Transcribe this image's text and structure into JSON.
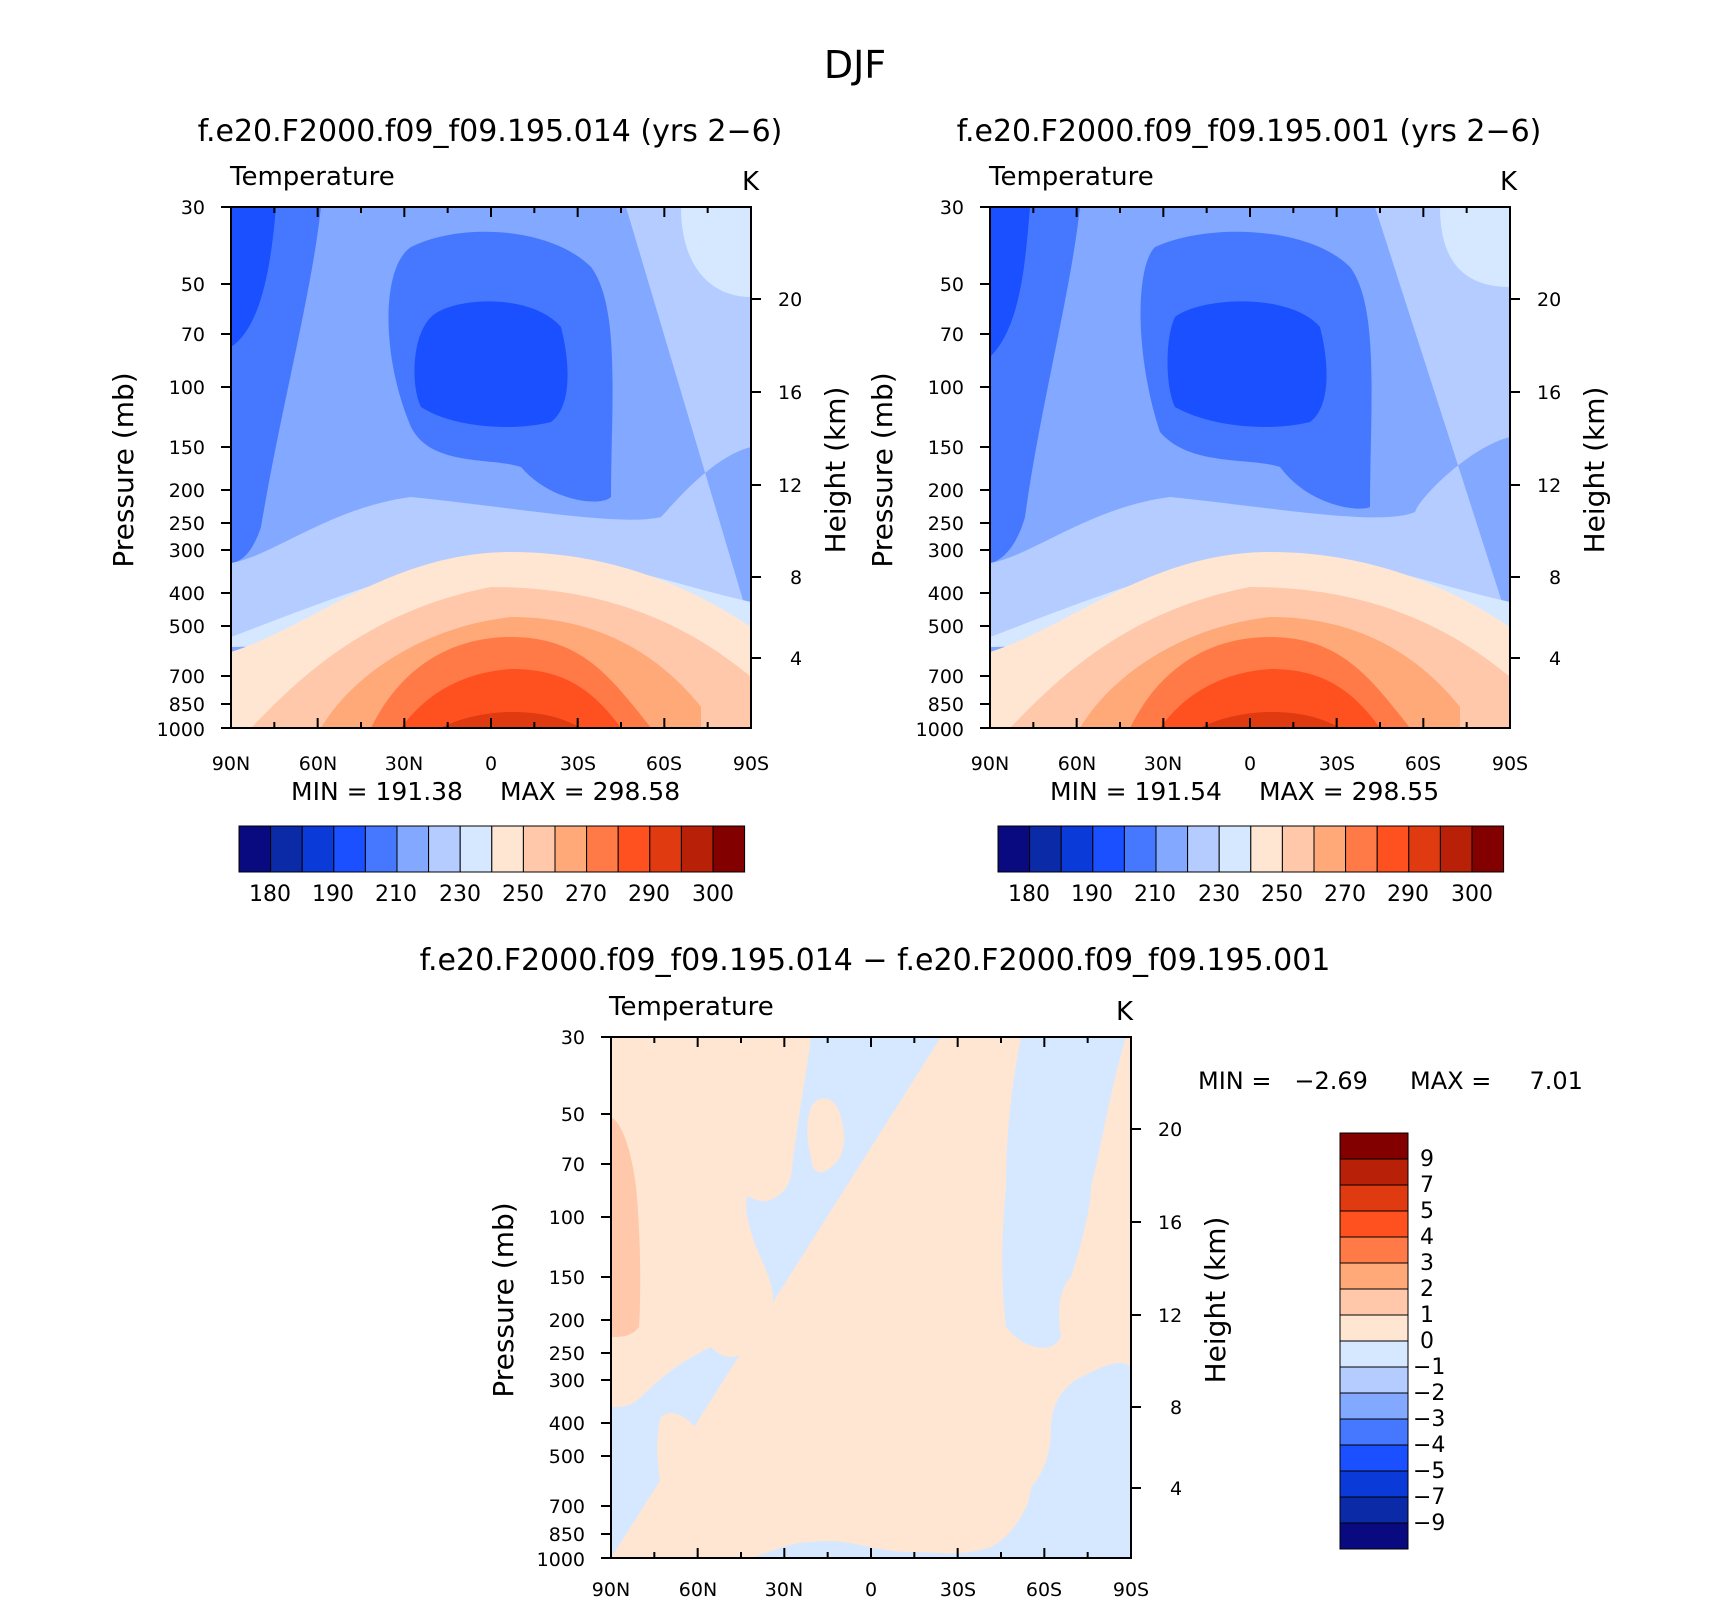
{
  "figure_title": "DJF",
  "chart_data": [
    {
      "type": "heatmap",
      "title": "f.e20.F2000.f09_f09.195.014 (yrs 2−6)",
      "subtitle": "Temperature",
      "units": "K",
      "ylabel": "Pressure (mb)",
      "y2label": "Height (km)",
      "x_ticks": [
        "90N",
        "60N",
        "30N",
        "0",
        "30S",
        "60S",
        "90S"
      ],
      "y_ticks": [
        "30",
        "50",
        "70",
        "100",
        "150",
        "200",
        "250",
        "300",
        "400",
        "500",
        "700",
        "850",
        "1000"
      ],
      "y2_ticks": [
        "20",
        "16",
        "12",
        "8",
        "4"
      ],
      "min_label": "MIN = 191.38",
      "max_label": "MAX = 298.58",
      "min": 191.38,
      "max": 298.58,
      "colorbar_labels": [
        "180",
        "190",
        "210",
        "230",
        "250",
        "270",
        "290",
        "300"
      ],
      "colors": [
        "#0a0a80",
        "#0a2aa8",
        "#0a3ad8",
        "#1a50ff",
        "#4678ff",
        "#82a8ff",
        "#b4ccff",
        "#d6e8ff",
        "#ffe6d2",
        "#ffc8aa",
        "#ffa878",
        "#ff7a46",
        "#ff5020",
        "#e03a10",
        "#b82008",
        "#820000"
      ]
    },
    {
      "type": "heatmap",
      "title": "f.e20.F2000.f09_f09.195.001 (yrs 2−6)",
      "subtitle": "Temperature",
      "units": "K",
      "ylabel": "Pressure (mb)",
      "y2label": "Height (km)",
      "x_ticks": [
        "90N",
        "60N",
        "30N",
        "0",
        "30S",
        "60S",
        "90S"
      ],
      "y_ticks": [
        "30",
        "50",
        "70",
        "100",
        "150",
        "200",
        "250",
        "300",
        "400",
        "500",
        "700",
        "850",
        "1000"
      ],
      "y2_ticks": [
        "20",
        "16",
        "12",
        "8",
        "4"
      ],
      "min_label": "MIN = 191.54",
      "max_label": "MAX = 298.55",
      "min": 191.54,
      "max": 298.55,
      "colorbar_labels": [
        "180",
        "190",
        "210",
        "230",
        "250",
        "270",
        "290",
        "300"
      ],
      "colors": [
        "#0a0a80",
        "#0a2aa8",
        "#0a3ad8",
        "#1a50ff",
        "#4678ff",
        "#82a8ff",
        "#b4ccff",
        "#d6e8ff",
        "#ffe6d2",
        "#ffc8aa",
        "#ffa878",
        "#ff7a46",
        "#ff5020",
        "#e03a10",
        "#b82008",
        "#820000"
      ]
    },
    {
      "type": "heatmap",
      "title": "f.e20.F2000.f09_f09.195.014 − f.e20.F2000.f09_f09.195.001",
      "subtitle": "Temperature",
      "units": "K",
      "ylabel": "Pressure (mb)",
      "y2label": "Height (km)",
      "x_ticks": [
        "90N",
        "60N",
        "30N",
        "0",
        "30S",
        "60S",
        "90S"
      ],
      "y_ticks": [
        "30",
        "50",
        "70",
        "100",
        "150",
        "200",
        "250",
        "300",
        "400",
        "500",
        "700",
        "850",
        "1000"
      ],
      "y2_ticks": [
        "20",
        "16",
        "12",
        "8",
        "4"
      ],
      "min_label": "MIN =   −2.69",
      "max_label": "MAX =     7.01",
      "min": -2.69,
      "max": 7.01,
      "colorbar_labels": [
        "9",
        "7",
        "5",
        "4",
        "3",
        "2",
        "1",
        "0",
        "−1",
        "−2",
        "−3",
        "−4",
        "−5",
        "−7",
        "−9"
      ],
      "colors": [
        "#820000",
        "#b82008",
        "#e03a10",
        "#ff5020",
        "#ff7a46",
        "#ffa878",
        "#ffc8aa",
        "#ffe6d2",
        "#d6e8ff",
        "#b4ccff",
        "#82a8ff",
        "#4678ff",
        "#1a50ff",
        "#0a3ad8",
        "#0a2aa8",
        "#0a0a80"
      ]
    }
  ]
}
